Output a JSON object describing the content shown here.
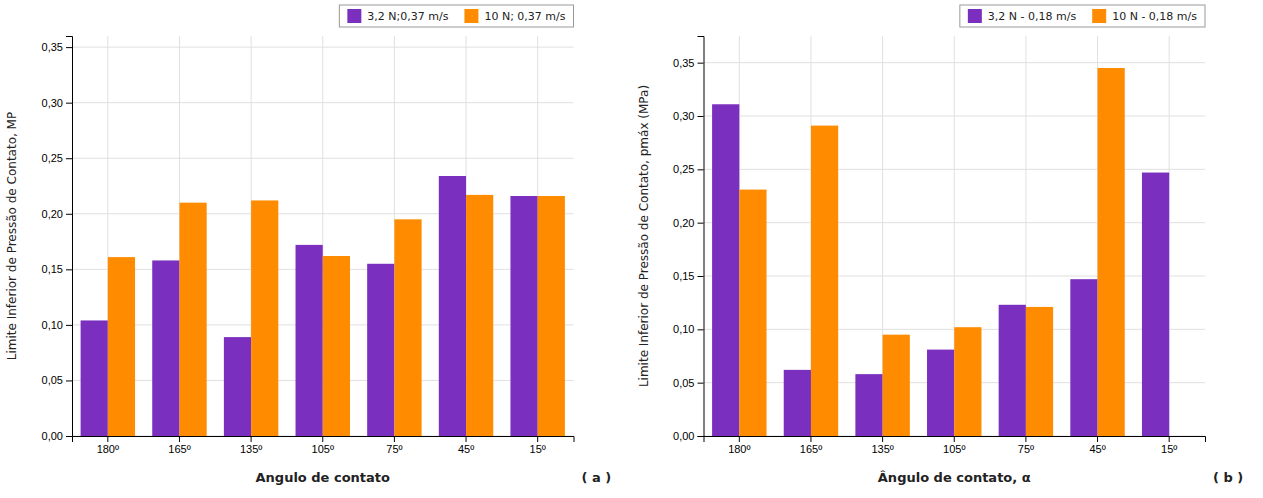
{
  "chart_data": [
    {
      "type": "bar",
      "categories": [
        "180º",
        "165º",
        "135º",
        "105º",
        "75º",
        "45º",
        "15º"
      ],
      "series": [
        {
          "name": "3,2 N;0,37 m/s",
          "color": "#7B2FBE",
          "values": [
            0.104,
            0.158,
            0.089,
            0.172,
            0.155,
            0.234,
            0.216
          ]
        },
        {
          "name": "10 N; 0,37 m/s",
          "color": "#FF8C00",
          "values": [
            0.161,
            0.21,
            0.212,
            0.162,
            0.195,
            0.217,
            0.216
          ]
        }
      ],
      "xlabel": "Angulo de contato",
      "ylabel": "Limite Inferior de Pressão de Contato, MP",
      "annotations": [
        "( a )"
      ],
      "ylim": [
        0.0,
        0.36
      ],
      "yticks": [
        {
          "value": 0.0,
          "label": "0,00"
        },
        {
          "value": 0.05,
          "label": "0,05"
        },
        {
          "value": 0.1,
          "label": "0,10"
        },
        {
          "value": 0.15,
          "label": "0,15"
        },
        {
          "value": 0.2,
          "label": "0,20"
        },
        {
          "value": 0.25,
          "label": "0,25"
        },
        {
          "value": 0.3,
          "label": "0,30"
        },
        {
          "value": 0.35,
          "label": "0,35"
        }
      ],
      "grid": true,
      "legend": "upper right"
    },
    {
      "type": "bar",
      "categories": [
        "180º",
        "165º",
        "135º",
        "105º",
        "75º",
        "45º",
        "15º"
      ],
      "series": [
        {
          "name": "3,2 N - 0,18 m/s",
          "color": "#7B2FBE",
          "values": [
            0.311,
            0.062,
            0.058,
            0.081,
            0.123,
            0.147,
            0.247
          ]
        },
        {
          "name": "10 N - 0,18 m/s",
          "color": "#FF8C00",
          "values": [
            0.231,
            0.291,
            0.095,
            0.102,
            0.121,
            0.345,
            0.0
          ]
        }
      ],
      "xlabel": "Ângulo de contato, α",
      "ylabel": "Limite Inferior de Pressão de Contato, pmáx (MPa)",
      "annotations": [
        "( b )"
      ],
      "ylim": [
        0.0,
        0.375
      ],
      "yticks": [
        {
          "value": 0.0,
          "label": "0,00"
        },
        {
          "value": 0.05,
          "label": "0,05"
        },
        {
          "value": 0.1,
          "label": "0,10"
        },
        {
          "value": 0.15,
          "label": "0,15"
        },
        {
          "value": 0.2,
          "label": "0,20"
        },
        {
          "value": 0.25,
          "label": "0,25"
        },
        {
          "value": 0.3,
          "label": "0,30"
        },
        {
          "value": 0.35,
          "label": "0,35"
        }
      ],
      "grid": true,
      "legend": "upper right"
    }
  ]
}
